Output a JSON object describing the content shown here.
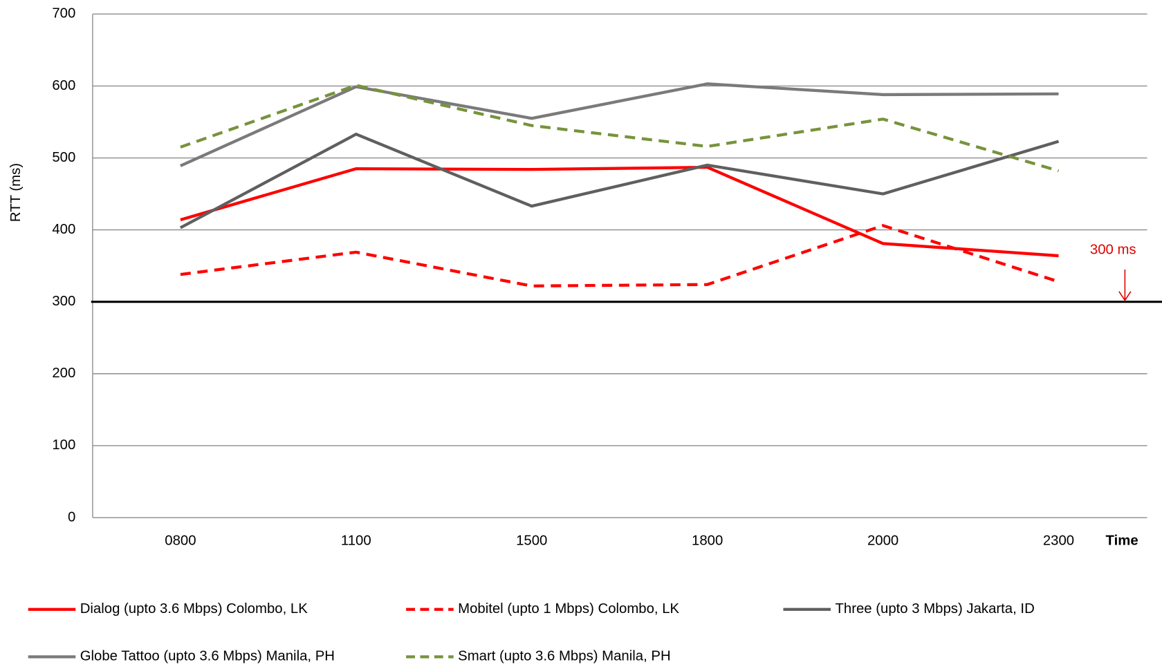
{
  "chart_data": {
    "type": "line",
    "y_label": "RTT (ms)",
    "x_label": "Time",
    "categories": [
      "0800",
      "1100",
      "1500",
      "1800",
      "2000",
      "2300"
    ],
    "ylim": [
      0,
      700
    ],
    "yticks": [
      0,
      100,
      200,
      300,
      400,
      500,
      600,
      700
    ],
    "grid": true,
    "series": [
      {
        "name": "Dialog (upto 3.6 Mbps) Colombo, LK",
        "color": "#ff0000",
        "dashed": false,
        "values": [
          414,
          485,
          484,
          487,
          381,
          364
        ]
      },
      {
        "name": "Mobitel (upto 1 Mbps) Colombo, LK",
        "color": "#ff0000",
        "dashed": true,
        "values": [
          338,
          369,
          322,
          324,
          406,
          328
        ]
      },
      {
        "name": "Three (upto 3 Mbps) Jakarta, ID",
        "color": "#5f5f5f",
        "dashed": false,
        "values": [
          403,
          533,
          433,
          490,
          450,
          523
        ]
      },
      {
        "name": "Globe Tattoo (upto 3.6 Mbps) Manila, PH",
        "color": "#7a7a7a",
        "dashed": false,
        "values": [
          489,
          599,
          555,
          603,
          588,
          589
        ]
      },
      {
        "name": "Smart (upto 3.6 Mbps) Manila, PH",
        "color": "#77933c",
        "dashed": true,
        "values": [
          515,
          601,
          545,
          516,
          554,
          482
        ]
      }
    ],
    "threshold": {
      "value": 300,
      "label": "300 ms",
      "color": "#e00000"
    }
  }
}
